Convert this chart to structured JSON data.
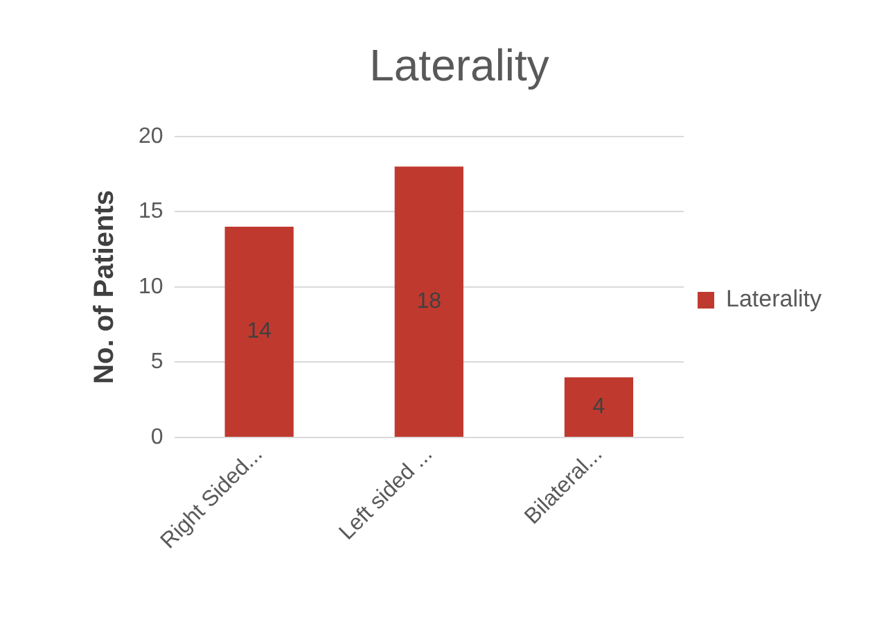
{
  "chart_data": {
    "type": "bar",
    "title": "Laterality",
    "ylabel": "No. of Patients",
    "categories": [
      "Right Sided...",
      "Left sided ...",
      "Bilateral..."
    ],
    "series": [
      {
        "name": "Laterality",
        "color": "#c0392f",
        "values": [
          14,
          18,
          4
        ]
      }
    ],
    "ylim": [
      0,
      20
    ],
    "yticks": [
      0,
      5,
      10,
      15,
      20
    ],
    "grid": "y",
    "legend": "right",
    "data_labels": true
  }
}
